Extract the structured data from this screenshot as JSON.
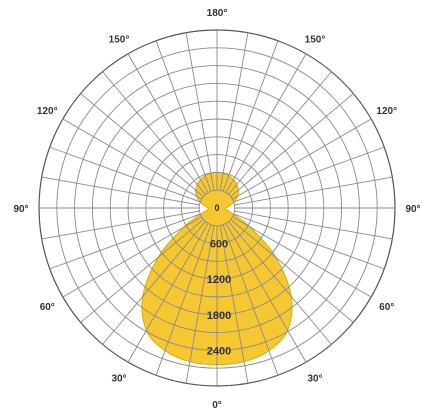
{
  "chart_data": {
    "type": "polar",
    "angle_labels": [
      {
        "deg": 180,
        "text": "180°"
      },
      {
        "deg": 150,
        "text": "150°"
      },
      {
        "deg": -150,
        "text": "150°"
      },
      {
        "deg": 120,
        "text": "120°"
      },
      {
        "deg": -120,
        "text": "120°"
      },
      {
        "deg": 90,
        "text": "90°"
      },
      {
        "deg": -90,
        "text": "90°"
      },
      {
        "deg": 60,
        "text": "60°"
      },
      {
        "deg": -60,
        "text": "60°"
      },
      {
        "deg": 30,
        "text": "30°"
      },
      {
        "deg": -30,
        "text": "30°"
      },
      {
        "deg": 0,
        "text": "0°"
      }
    ],
    "radial_ticks": [
      600,
      1200,
      1800,
      2400
    ],
    "center_label": "0",
    "r_max": 3000,
    "ring_count": 10,
    "spoke_step_deg": 10,
    "series": [
      {
        "color": "#f4c21c",
        "points": [
          {
            "angle": 0,
            "value": 2640
          },
          {
            "angle": 10,
            "value": 2630
          },
          {
            "angle": 20,
            "value": 2560
          },
          {
            "angle": 30,
            "value": 2380
          },
          {
            "angle": 40,
            "value": 1950
          },
          {
            "angle": 50,
            "value": 1300
          },
          {
            "angle": 60,
            "value": 650
          },
          {
            "angle": 70,
            "value": 280
          },
          {
            "angle": 80,
            "value": 160
          },
          {
            "angle": 90,
            "value": 150
          },
          {
            "angle": 100,
            "value": 210
          },
          {
            "angle": 110,
            "value": 310
          },
          {
            "angle": 120,
            "value": 400
          },
          {
            "angle": 130,
            "value": 470
          },
          {
            "angle": 140,
            "value": 520
          },
          {
            "angle": 150,
            "value": 555
          },
          {
            "angle": 160,
            "value": 580
          },
          {
            "angle": 170,
            "value": 595
          },
          {
            "angle": 180,
            "value": 600
          }
        ]
      }
    ]
  }
}
